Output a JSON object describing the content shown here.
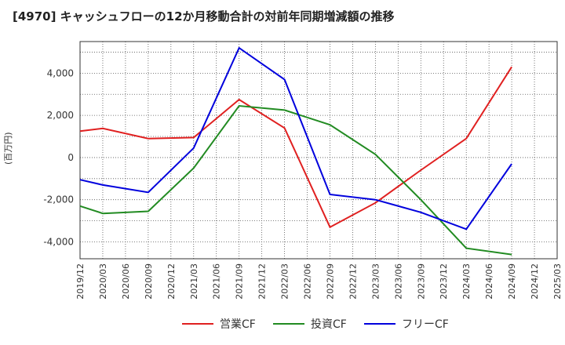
{
  "chart_data": {
    "type": "line",
    "title": "[4970]  キャッシュフローの12か月移動合計の対前年同期増減額の推移",
    "ylabel": "(百万円)",
    "xlabel": "",
    "ylim": [
      -4800,
      5500
    ],
    "yticks": [
      -4000,
      -2000,
      0,
      2000,
      4000
    ],
    "ytick_labels": [
      "-4,000",
      "-2,000",
      "0",
      "2,000",
      "4,000"
    ],
    "categories": [
      "2019/12",
      "2020/03",
      "2020/06",
      "2020/09",
      "2020/12",
      "2021/03",
      "2021/06",
      "2021/09",
      "2021/12",
      "2022/03",
      "2022/06",
      "2022/09",
      "2022/12",
      "2023/03",
      "2023/06",
      "2023/09",
      "2023/12",
      "2024/03",
      "2024/06",
      "2024/09",
      "2024/12",
      "2025/03"
    ],
    "grid": true,
    "legend_position": "bottom",
    "series": [
      {
        "name": "営業CF",
        "color": "#e02020",
        "values": [
          1250,
          1380,
          null,
          900,
          null,
          950,
          null,
          2750,
          null,
          1400,
          null,
          -3300,
          null,
          -2150,
          null,
          -600,
          null,
          900,
          null,
          4300,
          null,
          null
        ]
      },
      {
        "name": "投資CF",
        "color": "#228b22",
        "values": [
          -2300,
          -2650,
          null,
          -2550,
          null,
          -500,
          null,
          2450,
          null,
          2250,
          null,
          1550,
          null,
          150,
          null,
          -2000,
          null,
          -4300,
          null,
          -4600,
          null,
          null
        ]
      },
      {
        "name": "フリーCF",
        "color": "#0000dd",
        "values": [
          -1050,
          -1300,
          null,
          -1650,
          null,
          450,
          null,
          5200,
          null,
          3700,
          null,
          -1750,
          null,
          -2000,
          null,
          -2600,
          null,
          -3400,
          null,
          -300,
          null,
          null
        ]
      }
    ]
  }
}
